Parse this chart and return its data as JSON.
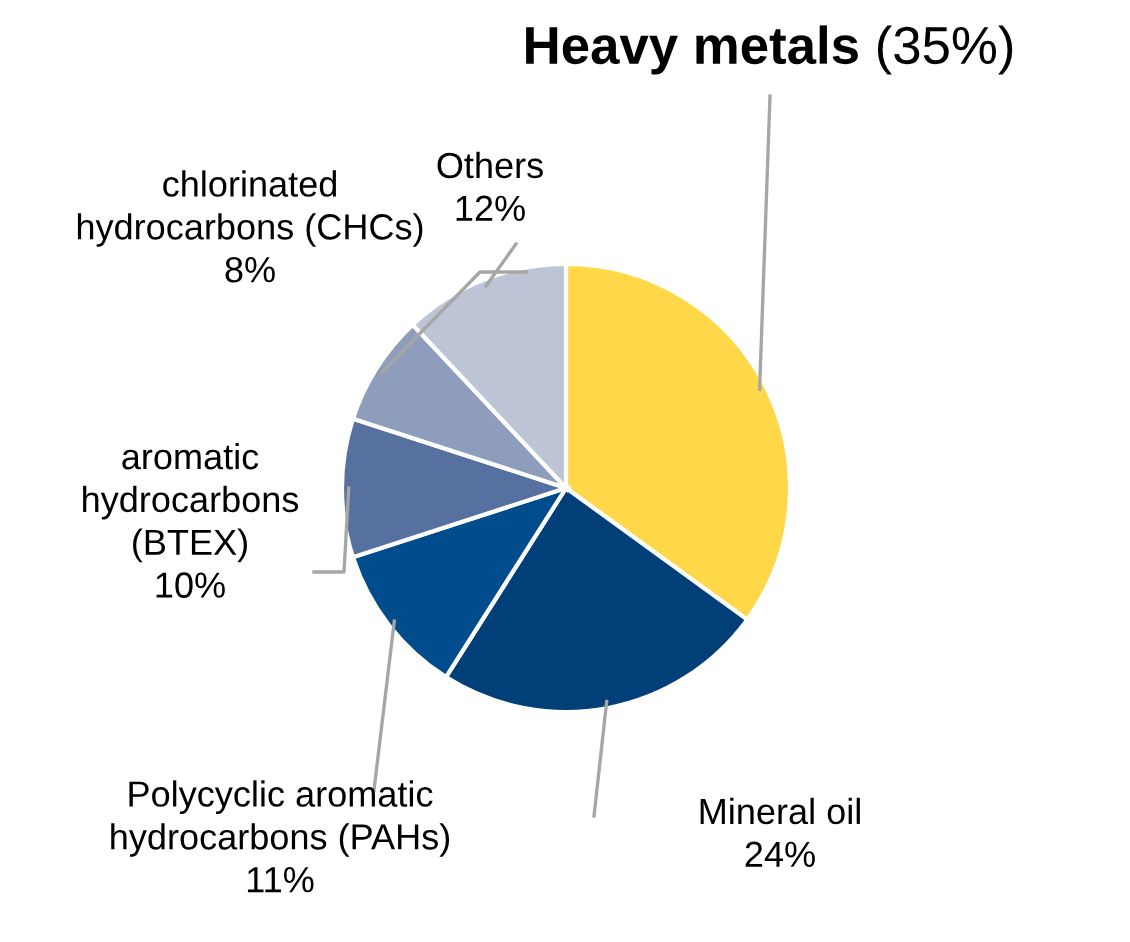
{
  "chart_data": {
    "type": "pie",
    "categories": [
      "Heavy metals",
      "Mineral oil",
      "Polycyclic aromatic\nhydrocarbons (PAHs)",
      "aromatic\nhydrocarbons\n(BTEX)",
      "chlorinated\nhydrocarbons (CHCs)",
      "Others"
    ],
    "values": [
      35,
      24,
      11,
      10,
      8,
      12
    ],
    "value_labels": [
      "(35%)",
      "24%",
      "11%",
      "10%",
      "8%",
      "12%"
    ],
    "colors": [
      "#ffd84a",
      "#003f78",
      "#004c8c",
      "#5670a0",
      "#8e9dbb",
      "#bcc4d6"
    ],
    "legend": false
  }
}
